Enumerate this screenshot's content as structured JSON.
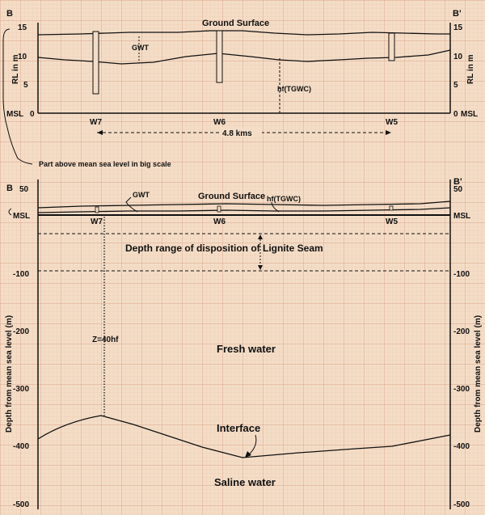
{
  "top_panel": {
    "left_label": "B",
    "right_label": "B'",
    "ticks": [
      "15",
      "10",
      "5",
      "0"
    ],
    "msl_label": "MSL",
    "ylabel": "RL in m",
    "ground_surface": "Ground Surface",
    "gwt": "GWT",
    "hf_label": "hf(TGWC)",
    "wells": [
      "W7",
      "W6",
      "W5"
    ],
    "distance": "4.8 kms",
    "note": "Part above mean sea level in big scale"
  },
  "bottom_panel": {
    "left_label": "B",
    "right_label": "B'",
    "ticks": [
      "50",
      "MSL",
      "-100",
      "-200",
      "-300",
      "-400",
      "-500"
    ],
    "ylabel": "Depth from mean sea level (m)",
    "ground_surface": "Ground Surface",
    "gwt": "GWT",
    "hf_label": "hf(TGWC)",
    "wells": [
      "W7",
      "W6",
      "W5"
    ],
    "lignite": "Depth range of disposition of Lignite Seam",
    "z_label": "Z=40hf",
    "fresh": "Fresh water",
    "interface": "Interface",
    "saline": "Saline water"
  },
  "colors": {
    "paper": "#f4ddc7",
    "grid_minor": "#e6bfa3",
    "grid_major": "#d4957a",
    "ink": "#111111"
  }
}
